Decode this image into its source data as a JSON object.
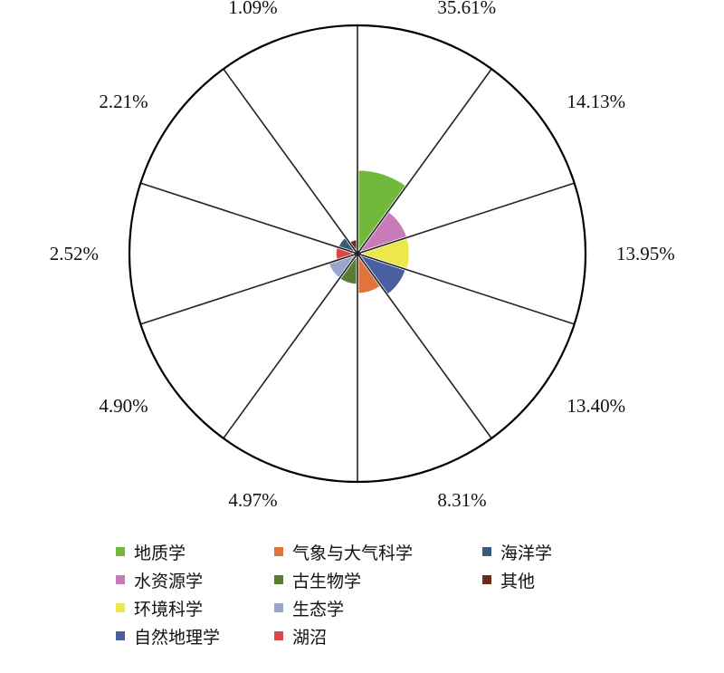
{
  "chart_data": {
    "type": "pie",
    "variant": "polar-area",
    "categories": [
      "地质学",
      "水资源学",
      "环境科学",
      "自然地理学",
      "气象与大气科学",
      "古生物学",
      "生态学",
      "湖沼",
      "海洋学",
      "其他"
    ],
    "values": [
      35.61,
      14.13,
      13.95,
      13.4,
      8.31,
      4.97,
      4.9,
      2.52,
      2.21,
      1.09
    ],
    "labels": [
      "35.61%",
      "14.13%",
      "13.95%",
      "13.40%",
      "8.31%",
      "4.97%",
      "4.90%",
      "2.52%",
      "2.21%",
      "1.09%"
    ],
    "colors": [
      "#70b93c",
      "#c87bb8",
      "#ece84a",
      "#4a5f9f",
      "#e3733c",
      "#5b7a34",
      "#9aa5cc",
      "#d94848",
      "#3a5a7c",
      "#6b2a1e"
    ],
    "legend": {
      "placement": "bottom",
      "columns": [
        [
          "地质学",
          "水资源学",
          "环境科学",
          "自然地理学"
        ],
        [
          "气象与大气科学",
          "古生物学",
          "生态学",
          "湖沼"
        ],
        [
          "海洋学",
          "其他"
        ]
      ]
    }
  }
}
